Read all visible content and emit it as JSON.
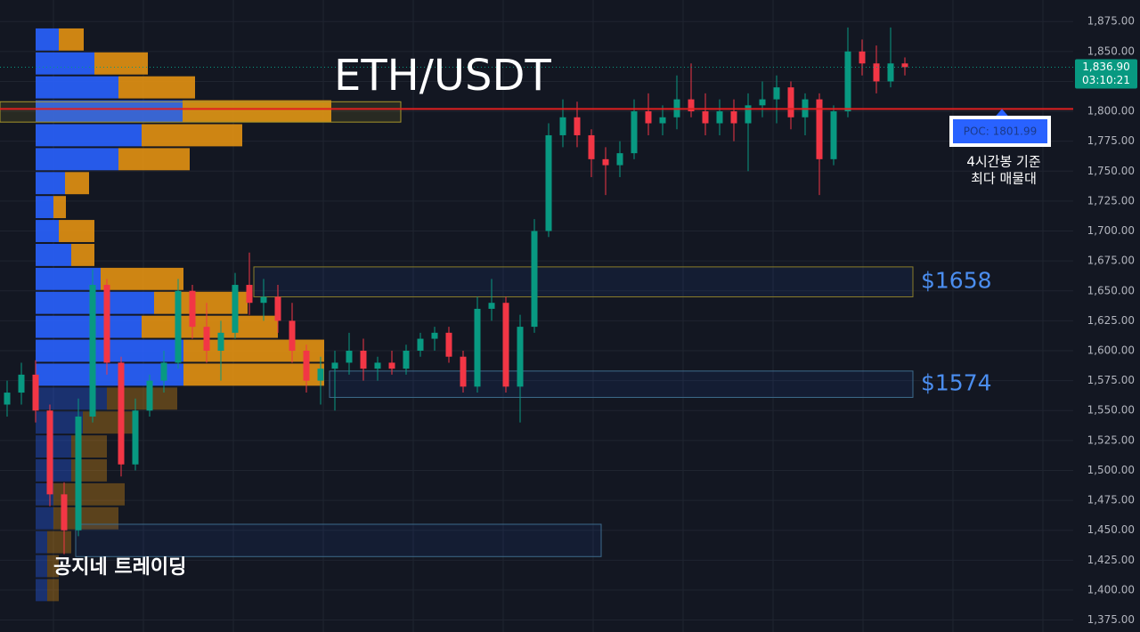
{
  "chart_data": {
    "type": "candlestick",
    "title": "ETH/USDT",
    "watermark": "공지네 트레이딩",
    "colors": {
      "up": "#089981",
      "down": "#f23645",
      "buy": "#2962ff",
      "sell": "#e39112",
      "poc": "#e02020",
      "background": "#131722"
    },
    "ylim": [
      1365,
      1893
    ],
    "yticks": [
      {
        "value": 1875,
        "label": "1,875.00"
      },
      {
        "value": 1850,
        "label": "1,850.00"
      },
      {
        "value": 1825,
        "label": "1,825.00"
      },
      {
        "value": 1800,
        "label": "1,800.00"
      },
      {
        "value": 1775,
        "label": "1,775.00"
      },
      {
        "value": 1750,
        "label": "1,750.00"
      },
      {
        "value": 1725,
        "label": "1,725.00"
      },
      {
        "value": 1700,
        "label": "1,700.00"
      },
      {
        "value": 1675,
        "label": "1,675.00"
      },
      {
        "value": 1650,
        "label": "1,650.00"
      },
      {
        "value": 1625,
        "label": "1,625.00"
      },
      {
        "value": 1600,
        "label": "1,600.00"
      },
      {
        "value": 1575,
        "label": "1,575.00"
      },
      {
        "value": 1550,
        "label": "1,550.00"
      },
      {
        "value": 1525,
        "label": "1,525.00"
      },
      {
        "value": 1500,
        "label": "1,500.00"
      },
      {
        "value": 1475,
        "label": "1,475.00"
      },
      {
        "value": 1450,
        "label": "1,450.00"
      },
      {
        "value": 1425,
        "label": "1,425.00"
      },
      {
        "value": 1400,
        "label": "1,400.00"
      },
      {
        "value": 1375,
        "label": "1,375.00"
      }
    ],
    "grid": true,
    "last_price": {
      "value": 1836.9,
      "label": "1,836.90"
    },
    "countdown": "03:10:21",
    "poc": {
      "value": 1801.99,
      "label": "POC: 1801.99"
    },
    "poc_note": [
      "4시간봉 기준",
      "최다 매물대"
    ],
    "poc_zone": [
      1791,
      1808
    ],
    "zones": [
      {
        "label": "$1658",
        "low": 1645,
        "high": 1670
      },
      {
        "label": "$1574",
        "low": 1561,
        "high": 1583
      },
      {
        "low": 1428,
        "high": 1455
      }
    ],
    "candles": [
      [
        1555,
        1575,
        1545,
        1565
      ],
      [
        1565,
        1590,
        1555,
        1580
      ],
      [
        1580,
        1592,
        1540,
        1550
      ],
      [
        1550,
        1555,
        1470,
        1480
      ],
      [
        1480,
        1490,
        1430,
        1450
      ],
      [
        1450,
        1560,
        1445,
        1545
      ],
      [
        1545,
        1668,
        1540,
        1655
      ],
      [
        1655,
        1660,
        1580,
        1590
      ],
      [
        1590,
        1595,
        1495,
        1505
      ],
      [
        1505,
        1560,
        1500,
        1550
      ],
      [
        1550,
        1580,
        1545,
        1575
      ],
      [
        1575,
        1600,
        1565,
        1590
      ],
      [
        1590,
        1660,
        1585,
        1650
      ],
      [
        1650,
        1655,
        1610,
        1620
      ],
      [
        1620,
        1640,
        1590,
        1600
      ],
      [
        1600,
        1625,
        1575,
        1615
      ],
      [
        1615,
        1665,
        1610,
        1655
      ],
      [
        1655,
        1682,
        1630,
        1640
      ],
      [
        1640,
        1660,
        1625,
        1645
      ],
      [
        1645,
        1655,
        1615,
        1625
      ],
      [
        1625,
        1640,
        1590,
        1600
      ],
      [
        1600,
        1605,
        1565,
        1575
      ],
      [
        1575,
        1595,
        1555,
        1585
      ],
      [
        1585,
        1600,
        1550,
        1590
      ],
      [
        1590,
        1615,
        1580,
        1600
      ],
      [
        1600,
        1610,
        1575,
        1585
      ],
      [
        1585,
        1595,
        1575,
        1590
      ],
      [
        1590,
        1600,
        1580,
        1585
      ],
      [
        1585,
        1605,
        1580,
        1600
      ],
      [
        1600,
        1615,
        1595,
        1610
      ],
      [
        1610,
        1620,
        1600,
        1615
      ],
      [
        1615,
        1620,
        1590,
        1595
      ],
      [
        1595,
        1600,
        1565,
        1570
      ],
      [
        1570,
        1645,
        1565,
        1635
      ],
      [
        1635,
        1660,
        1625,
        1640
      ],
      [
        1640,
        1645,
        1565,
        1570
      ],
      [
        1570,
        1630,
        1540,
        1620
      ],
      [
        1620,
        1710,
        1615,
        1700
      ],
      [
        1700,
        1790,
        1695,
        1780
      ],
      [
        1780,
        1810,
        1770,
        1795
      ],
      [
        1795,
        1808,
        1770,
        1780
      ],
      [
        1780,
        1785,
        1745,
        1760
      ],
      [
        1760,
        1770,
        1730,
        1755
      ],
      [
        1755,
        1775,
        1745,
        1765
      ],
      [
        1765,
        1810,
        1760,
        1800
      ],
      [
        1800,
        1815,
        1780,
        1790
      ],
      [
        1790,
        1805,
        1780,
        1795
      ],
      [
        1795,
        1830,
        1785,
        1810
      ],
      [
        1810,
        1840,
        1795,
        1800
      ],
      [
        1800,
        1815,
        1780,
        1790
      ],
      [
        1790,
        1810,
        1780,
        1800
      ],
      [
        1800,
        1810,
        1775,
        1790
      ],
      [
        1790,
        1815,
        1750,
        1805
      ],
      [
        1805,
        1825,
        1795,
        1810
      ],
      [
        1810,
        1830,
        1790,
        1820
      ],
      [
        1820,
        1825,
        1785,
        1795
      ],
      [
        1795,
        1815,
        1780,
        1810
      ],
      [
        1810,
        1815,
        1730,
        1760
      ],
      [
        1760,
        1805,
        1755,
        1800
      ],
      [
        1800,
        1870,
        1795,
        1850
      ],
      [
        1850,
        1860,
        1830,
        1840
      ],
      [
        1840,
        1855,
        1815,
        1825
      ],
      [
        1825,
        1870,
        1820,
        1840
      ],
      [
        1840,
        1845,
        1830,
        1836.9
      ]
    ],
    "volume_profile": {
      "bins": [
        1870,
        1850,
        1830,
        1810,
        1790,
        1770,
        1750,
        1730,
        1710,
        1690,
        1670,
        1650,
        1630,
        1610,
        1590,
        1570,
        1550,
        1530,
        1510,
        1490,
        1470,
        1450,
        1430,
        1410,
        1390
      ],
      "buy": [
        26,
        66,
        93,
        165,
        119,
        93,
        33,
        20,
        26,
        40,
        73,
        133,
        119,
        166,
        166,
        80,
        53,
        40,
        40,
        20,
        20,
        13,
        13,
        13
      ],
      "sell": [
        28,
        60,
        86,
        167,
        113,
        80,
        27,
        14,
        40,
        26,
        93,
        105,
        153,
        158,
        158,
        79,
        60,
        40,
        40,
        80,
        73,
        27,
        13,
        13
      ],
      "value_area_low": 1570
    }
  }
}
